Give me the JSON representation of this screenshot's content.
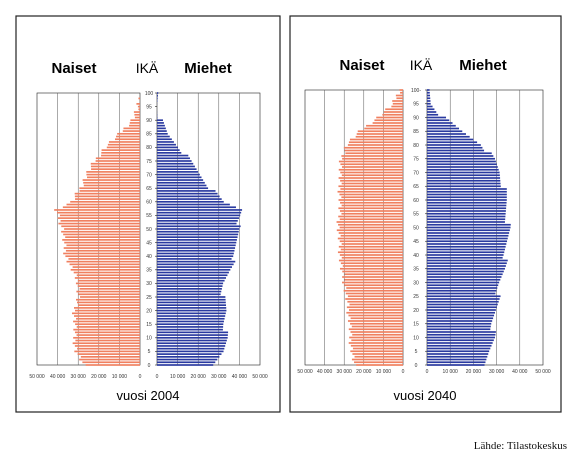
{
  "source": "Lähde: Tilastokeskus",
  "chart_data": [
    {
      "type": "bar",
      "subtype": "population-pyramid",
      "title": "",
      "left_label": "Naiset",
      "center_label": "IKÄ",
      "right_label": "Miehet",
      "year_label": "vuosi 2004",
      "age_ticks": [
        "0",
        "5",
        "10",
        "15",
        "20",
        "25",
        "30",
        "35",
        "40",
        "45",
        "50",
        "55",
        "60",
        "65",
        "70",
        "75",
        "80",
        "85",
        "90",
        "95",
        "100"
      ],
      "x_ticks_left": [
        "50 000",
        "40 000",
        "30 000",
        "20 000",
        "10 000",
        "0"
      ],
      "x_ticks_right": [
        "0",
        "10 000",
        "20 000",
        "30 000",
        "40 000",
        "50 000"
      ],
      "xlim": [
        0,
        50000
      ],
      "colors": {
        "women": "#f08060",
        "men": "#2a3aa0"
      },
      "women_knots": [
        [
          0,
          27500
        ],
        [
          5,
          31000
        ],
        [
          10,
          32000
        ],
        [
          15,
          31500
        ],
        [
          20,
          32000
        ],
        [
          25,
          30000
        ],
        [
          30,
          30000
        ],
        [
          35,
          33000
        ],
        [
          40,
          36000
        ],
        [
          45,
          37000
        ],
        [
          50,
          37500
        ],
        [
          55,
          40000
        ],
        [
          57,
          41000
        ],
        [
          60,
          33000
        ],
        [
          65,
          29000
        ],
        [
          70,
          26000
        ],
        [
          75,
          22000
        ],
        [
          80,
          17000
        ],
        [
          85,
          10000
        ],
        [
          90,
          4000
        ],
        [
          95,
          800
        ],
        [
          100,
          0
        ]
      ],
      "men_knots": [
        [
          0,
          28500
        ],
        [
          5,
          32500
        ],
        [
          10,
          33500
        ],
        [
          15,
          33000
        ],
        [
          20,
          33500
        ],
        [
          25,
          32000
        ],
        [
          30,
          32500
        ],
        [
          35,
          35000
        ],
        [
          40,
          38000
        ],
        [
          45,
          38500
        ],
        [
          50,
          39000
        ],
        [
          55,
          41000
        ],
        [
          57,
          41500
        ],
        [
          60,
          32000
        ],
        [
          65,
          26000
        ],
        [
          70,
          21000
        ],
        [
          75,
          16000
        ],
        [
          80,
          11000
        ],
        [
          85,
          5000
        ],
        [
          90,
          1700
        ],
        [
          95,
          300
        ],
        [
          100,
          0
        ]
      ]
    },
    {
      "type": "bar",
      "subtype": "population-pyramid",
      "title": "",
      "left_label": "Naiset",
      "center_label": "IKÄ",
      "right_label": "Miehet",
      "year_label": "vuosi 2040",
      "age_ticks": [
        "0",
        "5",
        "10",
        "15",
        "20",
        "25",
        "30",
        "35",
        "40",
        "45",
        "50",
        "55",
        "60",
        "65",
        "70",
        "75",
        "80",
        "85",
        "90",
        "95",
        "100-"
      ],
      "x_ticks_left": [
        "50 000",
        "40 000",
        "30 000",
        "20 000",
        "10 000",
        "0"
      ],
      "x_ticks_right": [
        "0",
        "10 000",
        "20 000",
        "30 000",
        "40 000",
        "50 000"
      ],
      "xlim": [
        0,
        50000
      ],
      "colors": {
        "women": "#f08060",
        "men": "#2a3aa0"
      },
      "women_knots": [
        [
          0,
          25000
        ],
        [
          5,
          26000
        ],
        [
          10,
          27000
        ],
        [
          15,
          27000
        ],
        [
          20,
          28000
        ],
        [
          25,
          29000
        ],
        [
          30,
          30000
        ],
        [
          35,
          31500
        ],
        [
          40,
          32000
        ],
        [
          45,
          32500
        ],
        [
          50,
          33000
        ],
        [
          55,
          32500
        ],
        [
          60,
          32000
        ],
        [
          65,
          32500
        ],
        [
          70,
          32000
        ],
        [
          75,
          31500
        ],
        [
          80,
          29000
        ],
        [
          85,
          22000
        ],
        [
          90,
          13000
        ],
        [
          95,
          5000
        ],
        [
          100,
          2000
        ]
      ],
      "men_knots": [
        [
          0,
          26000
        ],
        [
          5,
          27000
        ],
        [
          10,
          28500
        ],
        [
          15,
          28500
        ],
        [
          20,
          29500
        ],
        [
          25,
          30500
        ],
        [
          30,
          31500
        ],
        [
          35,
          33000
        ],
        [
          40,
          34000
        ],
        [
          45,
          34500
        ],
        [
          50,
          35000
        ],
        [
          55,
          34500
        ],
        [
          60,
          34000
        ],
        [
          65,
          33000
        ],
        [
          70,
          31500
        ],
        [
          75,
          28500
        ],
        [
          80,
          24000
        ],
        [
          85,
          15000
        ],
        [
          90,
          7000
        ],
        [
          95,
          2000
        ],
        [
          100,
          500
        ]
      ]
    }
  ]
}
